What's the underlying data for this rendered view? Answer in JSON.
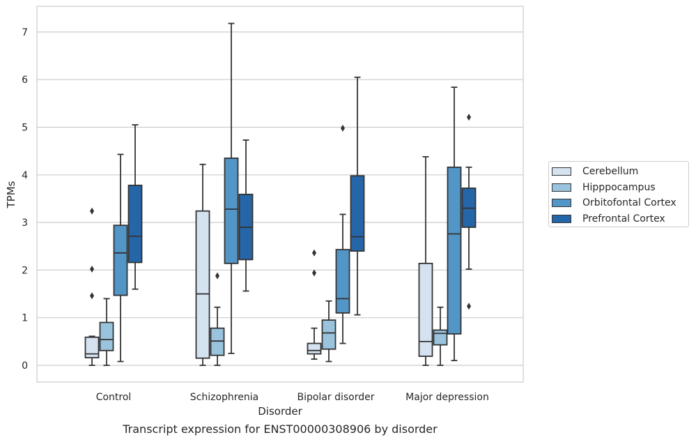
{
  "chart_data": {
    "type": "box",
    "xlabel": "Disorder",
    "ylabel": "TPMs",
    "caption": "Transcript expression for ENST00000308906 by disorder",
    "ylim": [
      -0.35,
      7.55
    ],
    "yticks": [
      0,
      1,
      2,
      3,
      4,
      5,
      6,
      7
    ],
    "grid": "horizontal",
    "legend_position": "right",
    "categories": [
      "Control",
      "Schizophrenia",
      "Bipolar disorder",
      "Major depression"
    ],
    "series": [
      {
        "name": "Cerebellum",
        "color": "#d5e3f1",
        "boxes": [
          {
            "whislo": 0.0,
            "q1": 0.16,
            "med": 0.24,
            "q3": 0.59,
            "whishi": 0.61,
            "fliers": [
              1.46,
              2.02,
              3.24
            ]
          },
          {
            "whislo": 0.0,
            "q1": 0.15,
            "med": 1.5,
            "q3": 3.24,
            "whishi": 4.22,
            "fliers": []
          },
          {
            "whislo": 0.13,
            "q1": 0.24,
            "med": 0.31,
            "q3": 0.46,
            "whishi": 0.78,
            "fliers": [
              1.94,
              2.36
            ]
          },
          {
            "whislo": 0.0,
            "q1": 0.19,
            "med": 0.5,
            "q3": 2.14,
            "whishi": 4.38,
            "fliers": []
          }
        ]
      },
      {
        "name": "Hipppocampus",
        "color": "#9ac4de",
        "boxes": [
          {
            "whislo": 0.0,
            "q1": 0.31,
            "med": 0.54,
            "q3": 0.9,
            "whishi": 1.4,
            "fliers": []
          },
          {
            "whislo": 0.0,
            "q1": 0.21,
            "med": 0.51,
            "q3": 0.78,
            "whishi": 1.22,
            "fliers": [
              1.88
            ]
          },
          {
            "whislo": 0.08,
            "q1": 0.34,
            "med": 0.68,
            "q3": 0.95,
            "whishi": 1.35,
            "fliers": []
          },
          {
            "whislo": 0.0,
            "q1": 0.43,
            "med": 0.67,
            "q3": 0.74,
            "whishi": 1.22,
            "fliers": []
          }
        ]
      },
      {
        "name": "Orbitofontal Cortex",
        "color": "#5295c7",
        "boxes": [
          {
            "whislo": 0.08,
            "q1": 1.47,
            "med": 2.36,
            "q3": 2.94,
            "whishi": 4.43,
            "fliers": []
          },
          {
            "whislo": 0.25,
            "q1": 2.14,
            "med": 3.28,
            "q3": 4.35,
            "whishi": 7.18,
            "fliers": []
          },
          {
            "whislo": 0.46,
            "q1": 1.1,
            "med": 1.4,
            "q3": 2.43,
            "whishi": 3.17,
            "fliers": [
              4.98
            ]
          },
          {
            "whislo": 0.1,
            "q1": 0.66,
            "med": 2.76,
            "q3": 4.16,
            "whishi": 5.84,
            "fliers": []
          }
        ]
      },
      {
        "name": "Prefrontal Cortex",
        "color": "#2566a8",
        "boxes": [
          {
            "whislo": 1.6,
            "q1": 2.16,
            "med": 2.71,
            "q3": 3.78,
            "whishi": 5.05,
            "fliers": []
          },
          {
            "whislo": 1.56,
            "q1": 2.22,
            "med": 2.9,
            "q3": 3.59,
            "whishi": 4.73,
            "fliers": []
          },
          {
            "whislo": 1.06,
            "q1": 2.4,
            "med": 2.7,
            "q3": 3.98,
            "whishi": 6.05,
            "fliers": []
          },
          {
            "whislo": 2.02,
            "q1": 2.9,
            "med": 3.3,
            "q3": 3.72,
            "whishi": 4.16,
            "fliers": [
              1.24,
              5.21
            ]
          }
        ]
      }
    ]
  }
}
